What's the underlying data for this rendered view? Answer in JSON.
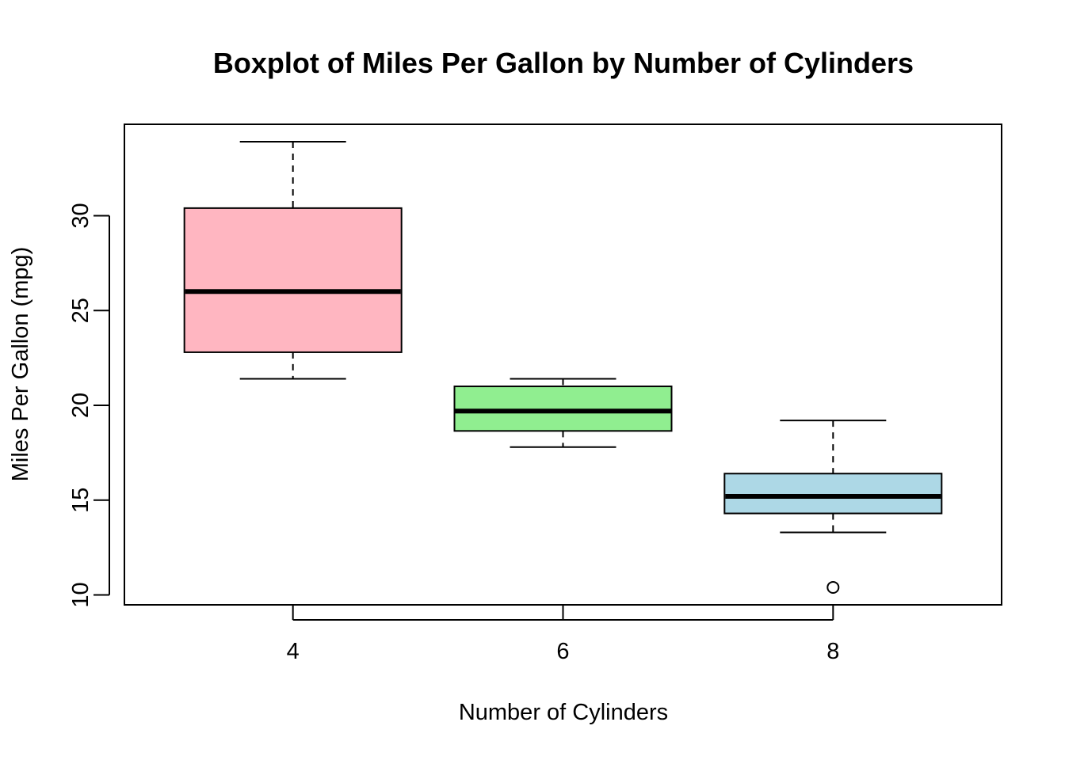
{
  "chart_data": {
    "type": "box",
    "title": "Boxplot of Miles Per Gallon by Number of Cylinders",
    "xlabel": "Number of Cylinders",
    "ylabel": "Miles Per Gallon (mpg)",
    "categories": [
      "4",
      "6",
      "8"
    ],
    "ylim": [
      9.48,
      34.82
    ],
    "yticks": [
      10,
      15,
      20,
      25,
      30
    ],
    "grid": false,
    "boxes": [
      {
        "category": "4",
        "min": 21.4,
        "q1": 22.8,
        "median": 26.0,
        "q3": 30.4,
        "max": 33.9,
        "outliers": [],
        "color": "#FFB6C1"
      },
      {
        "category": "6",
        "min": 17.8,
        "q1": 18.65,
        "median": 19.7,
        "q3": 21.0,
        "max": 21.4,
        "outliers": [],
        "color": "#90EE90"
      },
      {
        "category": "8",
        "min": 13.3,
        "q1": 14.3,
        "median": 15.2,
        "q3": 16.4,
        "max": 19.2,
        "outliers": [
          10.4
        ],
        "color": "#ADD8E6"
      }
    ]
  }
}
